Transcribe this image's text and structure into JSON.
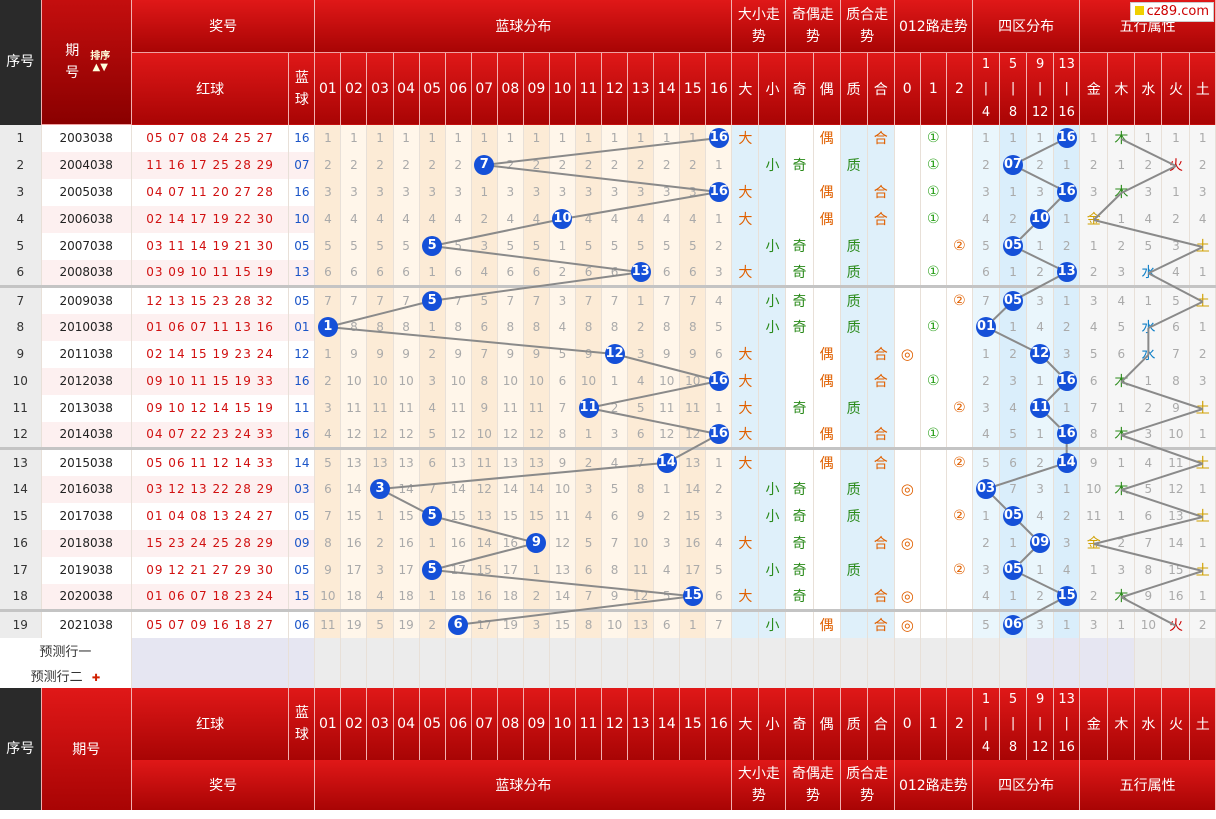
{
  "header": {
    "seq_label": "序号",
    "period_label": "期号",
    "sort_label": "排序",
    "prize_label": "奖号",
    "blue_dist_label": "蓝球分布",
    "big_small_label": "大小走势",
    "odd_even_label": "奇偶走势",
    "prime_comp_label": "质合走势",
    "road012_label": "012路走势",
    "zone4_label": "四区分布",
    "wuxing_label": "五行属性",
    "red_ball_label": "红球",
    "blue_ball_label": "蓝球",
    "numbers": [
      "01",
      "02",
      "03",
      "04",
      "05",
      "06",
      "07",
      "08",
      "09",
      "10",
      "11",
      "12",
      "13",
      "14",
      "15",
      "16"
    ],
    "big_small": [
      "大",
      "小"
    ],
    "odd_even": [
      "奇",
      "偶"
    ],
    "prime_comp": [
      "质",
      "合"
    ],
    "road012": [
      "0",
      "1",
      "2"
    ],
    "zones": [
      [
        "1",
        "|",
        "4"
      ],
      [
        "5",
        "|",
        "8"
      ],
      [
        "9",
        "|",
        "12"
      ],
      [
        "13",
        "|",
        "16"
      ]
    ],
    "wuxing": [
      "金",
      "木",
      "水",
      "火",
      "土"
    ]
  },
  "logo": "cz89.com",
  "rows": [
    {
      "seq": "1",
      "period": "2003038",
      "red": "05 07 08 24 25 27",
      "blue": "16",
      "miss": [
        "1",
        "1",
        "1",
        "1",
        "1",
        "1",
        "1",
        "1",
        "1",
        "1",
        "1",
        "1",
        "1",
        "1",
        "1",
        "16"
      ],
      "bs": [
        "大",
        ""
      ],
      "oe": [
        "",
        "偶"
      ],
      "pc": [
        "",
        "合"
      ],
      "r012": [
        "",
        "①",
        ""
      ],
      "zone": [
        "1",
        "1",
        "1",
        "16"
      ],
      "wx": [
        "1",
        "木",
        "1",
        "1",
        "1"
      ]
    },
    {
      "seq": "2",
      "period": "2004038",
      "red": "11 16 17 25 28 29",
      "blue": "07",
      "miss": [
        "2",
        "2",
        "2",
        "2",
        "2",
        "2",
        "7",
        "2",
        "2",
        "2",
        "2",
        "2",
        "2",
        "2",
        "2",
        "1"
      ],
      "bs": [
        "",
        "小"
      ],
      "oe": [
        "奇",
        ""
      ],
      "pc": [
        "质",
        ""
      ],
      "r012": [
        "",
        "①",
        ""
      ],
      "zone": [
        "2",
        "07",
        "2",
        "1"
      ],
      "wx": [
        "2",
        "1",
        "2",
        "火",
        "2"
      ]
    },
    {
      "seq": "3",
      "period": "2005038",
      "red": "04 07 11 20 27 28",
      "blue": "16",
      "miss": [
        "3",
        "3",
        "3",
        "3",
        "3",
        "3",
        "1",
        "3",
        "3",
        "3",
        "3",
        "3",
        "3",
        "3",
        "3",
        "16"
      ],
      "bs": [
        "大",
        ""
      ],
      "oe": [
        "",
        "偶"
      ],
      "pc": [
        "",
        "合"
      ],
      "r012": [
        "",
        "①",
        ""
      ],
      "zone": [
        "3",
        "1",
        "3",
        "16"
      ],
      "wx": [
        "3",
        "木",
        "3",
        "1",
        "3"
      ]
    },
    {
      "seq": "4",
      "period": "2006038",
      "red": "02 14 17 19 22 30",
      "blue": "10",
      "miss": [
        "4",
        "4",
        "4",
        "4",
        "4",
        "4",
        "2",
        "4",
        "4",
        "10",
        "4",
        "4",
        "4",
        "4",
        "4",
        "1"
      ],
      "bs": [
        "大",
        ""
      ],
      "oe": [
        "",
        "偶"
      ],
      "pc": [
        "",
        "合"
      ],
      "r012": [
        "",
        "①",
        ""
      ],
      "zone": [
        "4",
        "2",
        "10",
        "1"
      ],
      "wx": [
        "金",
        "1",
        "4",
        "2",
        "4"
      ]
    },
    {
      "seq": "5",
      "period": "2007038",
      "red": "03 11 14 19 21 30",
      "blue": "05",
      "miss": [
        "5",
        "5",
        "5",
        "5",
        "5",
        "5",
        "3",
        "5",
        "5",
        "1",
        "5",
        "5",
        "5",
        "5",
        "5",
        "2"
      ],
      "bs": [
        "",
        "小"
      ],
      "oe": [
        "奇",
        ""
      ],
      "pc": [
        "质",
        ""
      ],
      "r012": [
        "",
        "",
        "②"
      ],
      "zone": [
        "5",
        "05",
        "1",
        "2"
      ],
      "wx": [
        "1",
        "2",
        "5",
        "3",
        "土"
      ]
    },
    {
      "seq": "6",
      "period": "2008038",
      "red": "03 09 10 11 15 19",
      "blue": "13",
      "miss": [
        "6",
        "6",
        "6",
        "6",
        "1",
        "6",
        "4",
        "6",
        "6",
        "2",
        "6",
        "6",
        "13",
        "6",
        "6",
        "3"
      ],
      "bs": [
        "大",
        ""
      ],
      "oe": [
        "奇",
        ""
      ],
      "pc": [
        "质",
        ""
      ],
      "r012": [
        "",
        "①",
        ""
      ],
      "zone": [
        "6",
        "1",
        "2",
        "13"
      ],
      "wx": [
        "2",
        "3",
        "水",
        "4",
        "1"
      ]
    },
    {
      "seq": "7",
      "period": "2009038",
      "red": "12 13 15 23 28 32",
      "blue": "05",
      "miss": [
        "7",
        "7",
        "7",
        "7",
        "5",
        "7",
        "5",
        "7",
        "7",
        "3",
        "7",
        "7",
        "1",
        "7",
        "7",
        "4"
      ],
      "bs": [
        "",
        "小"
      ],
      "oe": [
        "奇",
        ""
      ],
      "pc": [
        "质",
        ""
      ],
      "r012": [
        "",
        "",
        "②"
      ],
      "zone": [
        "7",
        "05",
        "3",
        "1"
      ],
      "wx": [
        "3",
        "4",
        "1",
        "5",
        "土"
      ]
    },
    {
      "seq": "8",
      "period": "2010038",
      "red": "01 06 07 11 13 16",
      "blue": "01",
      "miss": [
        "1",
        "8",
        "8",
        "8",
        "1",
        "8",
        "6",
        "8",
        "8",
        "4",
        "8",
        "8",
        "2",
        "8",
        "8",
        "5"
      ],
      "bs": [
        "",
        "小"
      ],
      "oe": [
        "奇",
        ""
      ],
      "pc": [
        "质",
        ""
      ],
      "r012": [
        "",
        "①",
        ""
      ],
      "zone": [
        "01",
        "1",
        "4",
        "2"
      ],
      "wx": [
        "4",
        "5",
        "水",
        "6",
        "1"
      ]
    },
    {
      "seq": "9",
      "period": "2011038",
      "red": "02 14 15 19 23 24",
      "blue": "12",
      "miss": [
        "1",
        "9",
        "9",
        "9",
        "2",
        "9",
        "7",
        "9",
        "9",
        "5",
        "9",
        "12",
        "3",
        "9",
        "9",
        "6"
      ],
      "bs": [
        "大",
        ""
      ],
      "oe": [
        "",
        "偶"
      ],
      "pc": [
        "",
        "合"
      ],
      "r012": [
        "◎",
        "",
        ""
      ],
      "zone": [
        "1",
        "2",
        "12",
        "3"
      ],
      "wx": [
        "5",
        "6",
        "水",
        "7",
        "2"
      ]
    },
    {
      "seq": "10",
      "period": "2012038",
      "red": "09 10 11 15 19 33",
      "blue": "16",
      "miss": [
        "2",
        "10",
        "10",
        "10",
        "3",
        "10",
        "8",
        "10",
        "10",
        "6",
        "10",
        "1",
        "4",
        "10",
        "10",
        "16"
      ],
      "bs": [
        "大",
        ""
      ],
      "oe": [
        "",
        "偶"
      ],
      "pc": [
        "",
        "合"
      ],
      "r012": [
        "",
        "①",
        ""
      ],
      "zone": [
        "2",
        "3",
        "1",
        "16"
      ],
      "wx": [
        "6",
        "木",
        "1",
        "8",
        "3"
      ]
    },
    {
      "seq": "11",
      "period": "2013038",
      "red": "09 10 12 14 15 19",
      "blue": "11",
      "miss": [
        "3",
        "11",
        "11",
        "11",
        "4",
        "11",
        "9",
        "11",
        "11",
        "7",
        "11",
        "2",
        "5",
        "11",
        "11",
        "1"
      ],
      "bs": [
        "大",
        ""
      ],
      "oe": [
        "奇",
        ""
      ],
      "pc": [
        "质",
        ""
      ],
      "r012": [
        "",
        "",
        "②"
      ],
      "zone": [
        "3",
        "4",
        "11",
        "1"
      ],
      "wx": [
        "7",
        "1",
        "2",
        "9",
        "土"
      ]
    },
    {
      "seq": "12",
      "period": "2014038",
      "red": "04 07 22 23 24 33",
      "blue": "16",
      "miss": [
        "4",
        "12",
        "12",
        "12",
        "5",
        "12",
        "10",
        "12",
        "12",
        "8",
        "1",
        "3",
        "6",
        "12",
        "12",
        "16"
      ],
      "bs": [
        "大",
        ""
      ],
      "oe": [
        "",
        "偶"
      ],
      "pc": [
        "",
        "合"
      ],
      "r012": [
        "",
        "①",
        ""
      ],
      "zone": [
        "4",
        "5",
        "1",
        "16"
      ],
      "wx": [
        "8",
        "木",
        "3",
        "10",
        "1"
      ]
    },
    {
      "seq": "13",
      "period": "2015038",
      "red": "05 06 11 12 14 33",
      "blue": "14",
      "miss": [
        "5",
        "13",
        "13",
        "13",
        "6",
        "13",
        "11",
        "13",
        "13",
        "9",
        "2",
        "4",
        "7",
        "14",
        "13",
        "1"
      ],
      "bs": [
        "大",
        ""
      ],
      "oe": [
        "",
        "偶"
      ],
      "pc": [
        "",
        "合"
      ],
      "r012": [
        "",
        "",
        "②"
      ],
      "zone": [
        "5",
        "6",
        "2",
        "14"
      ],
      "wx": [
        "9",
        "1",
        "4",
        "11",
        "土"
      ]
    },
    {
      "seq": "14",
      "period": "2016038",
      "red": "03 12 13 22 28 29",
      "blue": "03",
      "miss": [
        "6",
        "14",
        "3",
        "14",
        "7",
        "14",
        "12",
        "14",
        "14",
        "10",
        "3",
        "5",
        "8",
        "1",
        "14",
        "2"
      ],
      "bs": [
        "",
        "小"
      ],
      "oe": [
        "奇",
        ""
      ],
      "pc": [
        "质",
        ""
      ],
      "r012": [
        "◎",
        "",
        ""
      ],
      "zone": [
        "03",
        "7",
        "3",
        "1"
      ],
      "wx": [
        "10",
        "木",
        "5",
        "12",
        "1"
      ]
    },
    {
      "seq": "15",
      "period": "2017038",
      "red": "01 04 08 13 24 27",
      "blue": "05",
      "miss": [
        "7",
        "15",
        "1",
        "15",
        "5",
        "15",
        "13",
        "15",
        "15",
        "11",
        "4",
        "6",
        "9",
        "2",
        "15",
        "3"
      ],
      "bs": [
        "",
        "小"
      ],
      "oe": [
        "奇",
        ""
      ],
      "pc": [
        "质",
        ""
      ],
      "r012": [
        "",
        "",
        "②"
      ],
      "zone": [
        "1",
        "05",
        "4",
        "2"
      ],
      "wx": [
        "11",
        "1",
        "6",
        "13",
        "土"
      ]
    },
    {
      "seq": "16",
      "period": "2018038",
      "red": "15 23 24 25 28 29",
      "blue": "09",
      "miss": [
        "8",
        "16",
        "2",
        "16",
        "1",
        "16",
        "14",
        "16",
        "9",
        "12",
        "5",
        "7",
        "10",
        "3",
        "16",
        "4"
      ],
      "bs": [
        "大",
        ""
      ],
      "oe": [
        "奇",
        ""
      ],
      "pc": [
        "",
        "合"
      ],
      "r012": [
        "◎",
        "",
        ""
      ],
      "zone": [
        "2",
        "1",
        "09",
        "3"
      ],
      "wx": [
        "金",
        "2",
        "7",
        "14",
        "1"
      ]
    },
    {
      "seq": "17",
      "period": "2019038",
      "red": "09 12 21 27 29 30",
      "blue": "05",
      "miss": [
        "9",
        "17",
        "3",
        "17",
        "5",
        "17",
        "15",
        "17",
        "1",
        "13",
        "6",
        "8",
        "11",
        "4",
        "17",
        "5"
      ],
      "bs": [
        "",
        "小"
      ],
      "oe": [
        "奇",
        ""
      ],
      "pc": [
        "质",
        ""
      ],
      "r012": [
        "",
        "",
        "②"
      ],
      "zone": [
        "3",
        "05",
        "1",
        "4"
      ],
      "wx": [
        "1",
        "3",
        "8",
        "15",
        "土"
      ]
    },
    {
      "seq": "18",
      "period": "2020038",
      "red": "01 06 07 18 23 24",
      "blue": "15",
      "miss": [
        "10",
        "18",
        "4",
        "18",
        "1",
        "18",
        "16",
        "18",
        "2",
        "14",
        "7",
        "9",
        "12",
        "5",
        "15",
        "6"
      ],
      "bs": [
        "大",
        ""
      ],
      "oe": [
        "奇",
        ""
      ],
      "pc": [
        "",
        "合"
      ],
      "r012": [
        "◎",
        "",
        ""
      ],
      "zone": [
        "4",
        "1",
        "2",
        "15"
      ],
      "wx": [
        "2",
        "木",
        "9",
        "16",
        "1"
      ]
    },
    {
      "seq": "19",
      "period": "2021038",
      "red": "05 07 09 16 18 27",
      "blue": "06",
      "miss": [
        "11",
        "19",
        "5",
        "19",
        "2",
        "6",
        "17",
        "19",
        "3",
        "15",
        "8",
        "10",
        "13",
        "6",
        "1",
        "7"
      ],
      "bs": [
        "",
        "小"
      ],
      "oe": [
        "",
        "偶"
      ],
      "pc": [
        "",
        "合"
      ],
      "r012": [
        "◎",
        "",
        ""
      ],
      "zone": [
        "5",
        "06",
        "3",
        "1"
      ],
      "wx": [
        "3",
        "1",
        "10",
        "火",
        "2"
      ]
    }
  ],
  "predict": [
    "预测行一",
    "预测行二"
  ]
}
